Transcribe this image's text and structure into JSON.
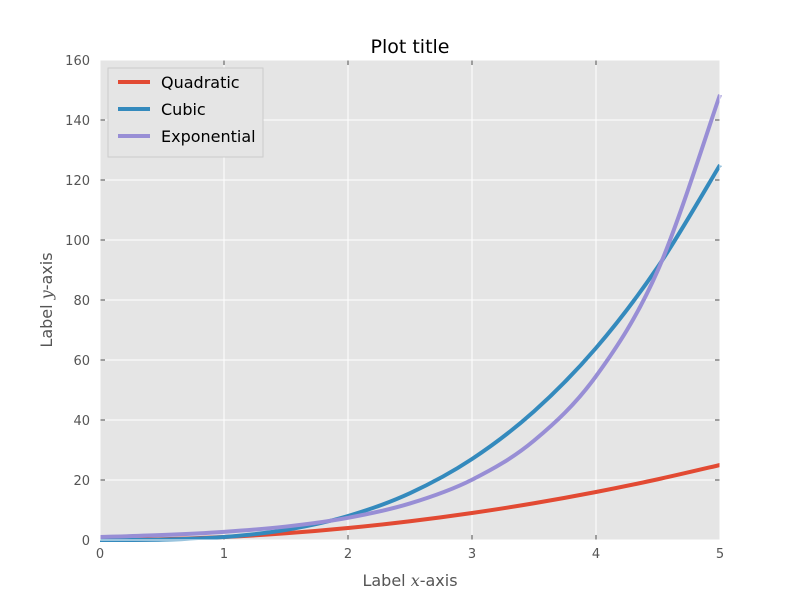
{
  "chart_data": {
    "type": "line",
    "title": "Plot title",
    "xlabel_prefix": "Label ",
    "xlabel_var": "x",
    "xlabel_suffix": "-axis",
    "ylabel_prefix": "Label ",
    "ylabel_var": "y",
    "ylabel_suffix": "-axis",
    "xlim": [
      0,
      5
    ],
    "ylim": [
      0,
      160
    ],
    "xticks": [
      0,
      1,
      2,
      3,
      4,
      5
    ],
    "yticks": [
      0,
      20,
      40,
      60,
      80,
      100,
      120,
      140,
      160
    ],
    "grid": true,
    "legend": "upper-left",
    "x": [
      0,
      0.5,
      1,
      1.5,
      2,
      2.5,
      3,
      3.5,
      4,
      4.5,
      5
    ],
    "series": [
      {
        "name": "Quadratic",
        "color": "#E24A33",
        "values": [
          0,
          0.25,
          1,
          2.25,
          4,
          6.25,
          9,
          12.25,
          16,
          20.25,
          25
        ]
      },
      {
        "name": "Cubic",
        "color": "#348ABD",
        "values": [
          0,
          0.125,
          1,
          3.375,
          8,
          15.625,
          27,
          42.875,
          64,
          91.125,
          125
        ]
      },
      {
        "name": "Exponential",
        "color": "#988ED5",
        "values": [
          1,
          1.65,
          2.72,
          4.48,
          7.39,
          12.18,
          20.09,
          33.12,
          54.6,
          90.02,
          148.41
        ]
      }
    ],
    "style": {
      "background": "#E5E5E5",
      "grid_color": "#FFFFFF",
      "tick_color": "#555555"
    }
  }
}
